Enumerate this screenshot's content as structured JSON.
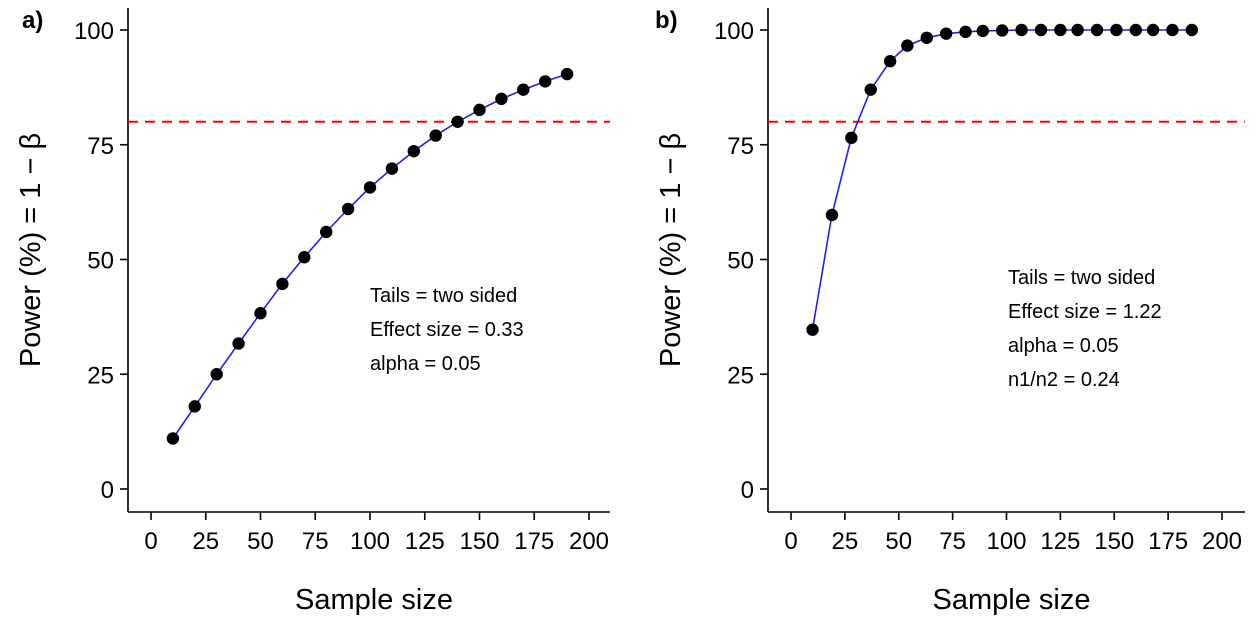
{
  "chart_data": [
    {
      "type": "line",
      "panel_label": "a)",
      "title": "",
      "xlabel": "Sample size",
      "ylabel": "Power (%) = 1 − β",
      "xlim": [
        0,
        200
      ],
      "ylim": [
        0,
        100
      ],
      "xticks": [
        0,
        25,
        50,
        75,
        100,
        125,
        150,
        175,
        200
      ],
      "yticks": [
        0,
        25,
        50,
        75,
        100
      ],
      "grid": false,
      "legend": "none",
      "reference_line": {
        "y": 80,
        "color": "#ff0000",
        "style": "dashed"
      },
      "line_color": "#2222dd",
      "marker_color": "#000000",
      "series": [
        {
          "x": [
            10,
            20,
            30,
            40,
            50,
            60,
            70,
            80,
            90,
            100,
            110,
            120,
            130,
            140,
            150,
            160,
            170,
            180,
            190
          ],
          "y": [
            11,
            18,
            25,
            31.7,
            38.3,
            44.7,
            50.5,
            56,
            61,
            65.7,
            69.8,
            73.6,
            77,
            80,
            82.6,
            85,
            87,
            88.8,
            90.4
          ]
        }
      ],
      "annotations": [
        "Tails = two sided",
        "Effect size = 0.33",
        "alpha = 0.05"
      ]
    },
    {
      "type": "line",
      "panel_label": "b)",
      "title": "",
      "xlabel": "Sample size",
      "ylabel": "Power (%) = 1 − β",
      "xlim": [
        0,
        200
      ],
      "ylim": [
        0,
        100
      ],
      "xticks": [
        0,
        25,
        50,
        75,
        100,
        125,
        150,
        175,
        200
      ],
      "yticks": [
        0,
        25,
        50,
        75,
        100
      ],
      "grid": false,
      "legend": "none",
      "reference_line": {
        "y": 80,
        "color": "#ff0000",
        "style": "dashed"
      },
      "line_color": "#2222dd",
      "marker_color": "#000000",
      "series": [
        {
          "x": [
            10,
            19,
            28,
            37,
            46,
            54,
            63,
            72,
            81,
            89,
            98,
            107,
            116,
            125,
            133,
            142,
            151,
            160,
            168,
            177,
            186
          ],
          "y": [
            34.7,
            59.7,
            76.5,
            87,
            93.2,
            96.6,
            98.3,
            99.2,
            99.6,
            99.8,
            99.9,
            100,
            100,
            100,
            100,
            100,
            100,
            100,
            100,
            100,
            100
          ]
        }
      ],
      "annotations": [
        "Tails = two sided",
        "Effect size = 1.22",
        "alpha = 0.05",
        "n1/n2 = 0.24"
      ]
    }
  ]
}
